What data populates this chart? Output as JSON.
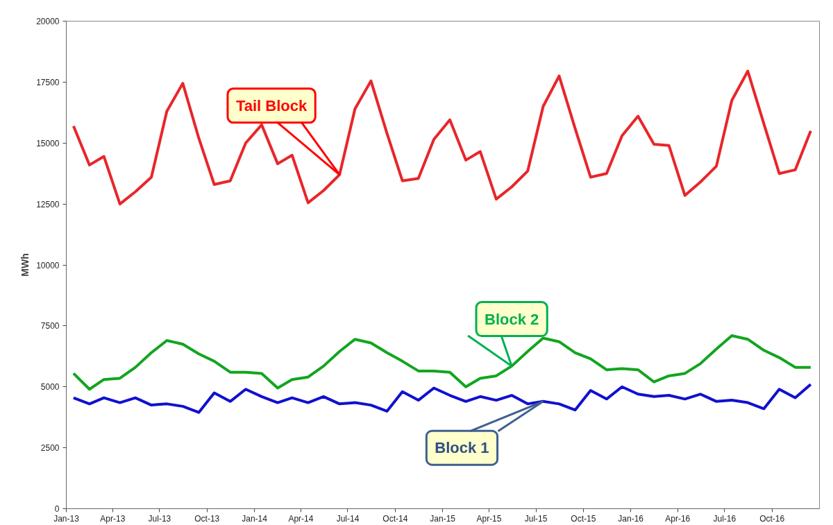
{
  "chart_data": {
    "type": "line",
    "ylabel": "MWh",
    "x": [
      "2013-01-15",
      "2013-02-15",
      "2013-03-15",
      "2013-04-15",
      "2013-05-15",
      "2013-06-15",
      "2013-07-15",
      "2013-08-15",
      "2013-09-15",
      "2013-10-15",
      "2013-11-15",
      "2013-12-15",
      "2014-01-15",
      "2014-02-15",
      "2014-03-15",
      "2014-04-15",
      "2014-05-15",
      "2014-06-15",
      "2014-07-15",
      "2014-08-15",
      "2014-09-15",
      "2014-10-15",
      "2014-11-15",
      "2014-12-15",
      "2015-01-15",
      "2015-02-15",
      "2015-03-15",
      "2015-04-15",
      "2015-05-15",
      "2015-06-15",
      "2015-07-15",
      "2015-08-15",
      "2015-09-15",
      "2015-10-15",
      "2015-11-15",
      "2015-12-15",
      "2016-01-15",
      "2016-02-15",
      "2016-03-15",
      "2016-04-15",
      "2016-05-15",
      "2016-06-15",
      "2016-07-15",
      "2016-08-15",
      "2016-09-15",
      "2016-10-15",
      "2016-11-15",
      "2016-12-15"
    ],
    "series": [
      {
        "color": "#e8262a",
        "values": [
          15700,
          14100,
          14450,
          12500,
          13000,
          13600,
          16300,
          17450,
          15200,
          13300,
          13450,
          15000,
          15750,
          14150,
          14500,
          12550,
          13050,
          13700,
          16400,
          17550,
          15400,
          13450,
          13550,
          15150,
          15950,
          14300,
          14650,
          12700,
          13200,
          13850,
          16500,
          17750,
          15600,
          13600,
          13750,
          15300,
          16100,
          14950,
          14900,
          12850,
          13400,
          14050,
          16750,
          17950,
          15800,
          13750,
          13900,
          15500
        ]
      },
      {
        "color": "#12a51f",
        "values": [
          5550,
          4900,
          5300,
          5350,
          5800,
          6400,
          6900,
          6750,
          6350,
          6050,
          5600,
          5600,
          5550,
          4950,
          5300,
          5400,
          5850,
          6450,
          6950,
          6800,
          6400,
          6050,
          5650,
          5650,
          5600,
          5000,
          5350,
          5450,
          5850,
          6450,
          7000,
          6850,
          6400,
          6150,
          5700,
          5750,
          5700,
          5200,
          5450,
          5550,
          5950,
          6550,
          7100,
          6950,
          6500,
          6200,
          5800,
          5800
        ]
      },
      {
        "color": "#1010d0",
        "values": [
          4550,
          4300,
          4550,
          4350,
          4550,
          4250,
          4300,
          4200,
          3950,
          4750,
          4400,
          4900,
          4600,
          4350,
          4550,
          4350,
          4600,
          4300,
          4350,
          4250,
          4000,
          4800,
          4450,
          4950,
          4650,
          4400,
          4600,
          4450,
          4650,
          4300,
          4400,
          4300,
          4050,
          4850,
          4500,
          5000,
          4700,
          4600,
          4650,
          4500,
          4700,
          4400,
          4450,
          4350,
          4100,
          4900,
          4550,
          5100
        ]
      }
    ],
    "annotations": [
      {
        "text": "Tail Block",
        "x": "2014-06-15",
        "y": 13700
      },
      {
        "text": "Block 2",
        "x": "2015-05-15",
        "y": 5850
      },
      {
        "text": "Block 1",
        "x": "2015-07-15",
        "y": 4400
      }
    ],
    "xlim": [
      "2013-01-01",
      "2017-01-01"
    ],
    "xticks": [
      {
        "value": "2013-01-01",
        "label": "Jan-13"
      },
      {
        "value": "2013-04-01",
        "label": "Apr-13"
      },
      {
        "value": "2013-07-01",
        "label": "Jul-13"
      },
      {
        "value": "2013-10-01",
        "label": "Oct-13"
      },
      {
        "value": "2014-01-01",
        "label": "Jan-14"
      },
      {
        "value": "2014-04-01",
        "label": "Apr-14"
      },
      {
        "value": "2014-07-01",
        "label": "Jul-14"
      },
      {
        "value": "2014-10-01",
        "label": "Oct-14"
      },
      {
        "value": "2015-01-01",
        "label": "Jan-15"
      },
      {
        "value": "2015-04-01",
        "label": "Apr-15"
      },
      {
        "value": "2015-07-01",
        "label": "Jul-15"
      },
      {
        "value": "2015-10-01",
        "label": "Oct-15"
      },
      {
        "value": "2016-01-01",
        "label": "Jan-16"
      },
      {
        "value": "2016-04-01",
        "label": "Apr-16"
      },
      {
        "value": "2016-07-01",
        "label": "Jul-16"
      },
      {
        "value": "2016-10-01",
        "label": "Oct-16"
      }
    ],
    "ylim": [
      0,
      20000
    ],
    "yticks": [
      0,
      2500,
      5000,
      7500,
      10000,
      12500,
      15000,
      17500,
      20000
    ],
    "grid": false,
    "marker": "none",
    "line_style": "solid"
  }
}
